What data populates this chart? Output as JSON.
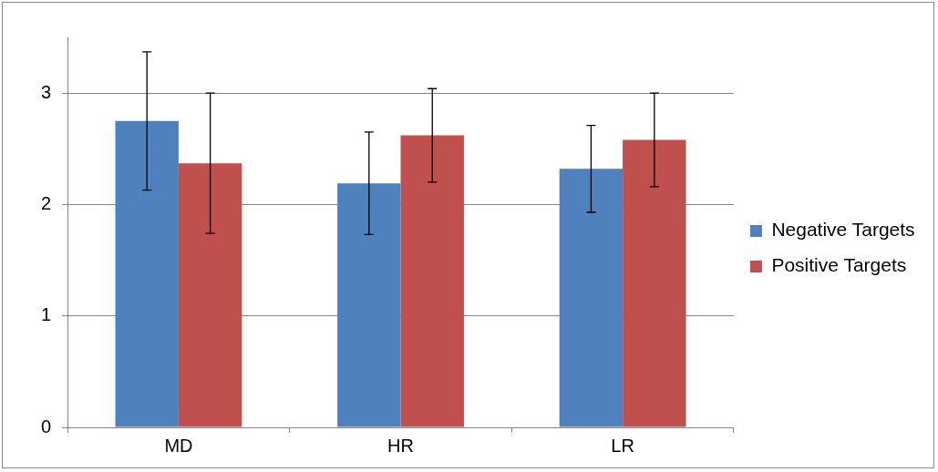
{
  "chart_data": {
    "type": "bar",
    "categories": [
      "MD",
      "HR",
      "LR"
    ],
    "series": [
      {
        "name": "Negative Targets",
        "color": "#4f81bd",
        "values": [
          2.75,
          2.19,
          2.32
        ],
        "errors": [
          0.62,
          0.46,
          0.39
        ]
      },
      {
        "name": "Positive Targets",
        "color": "#c0504d",
        "values": [
          2.37,
          2.62,
          2.58
        ],
        "errors": [
          0.63,
          0.42,
          0.42
        ]
      }
    ],
    "ylim": [
      0,
      3.5
    ],
    "yticks": [
      0,
      1,
      2,
      3
    ],
    "grid": "y",
    "legend": "right"
  }
}
